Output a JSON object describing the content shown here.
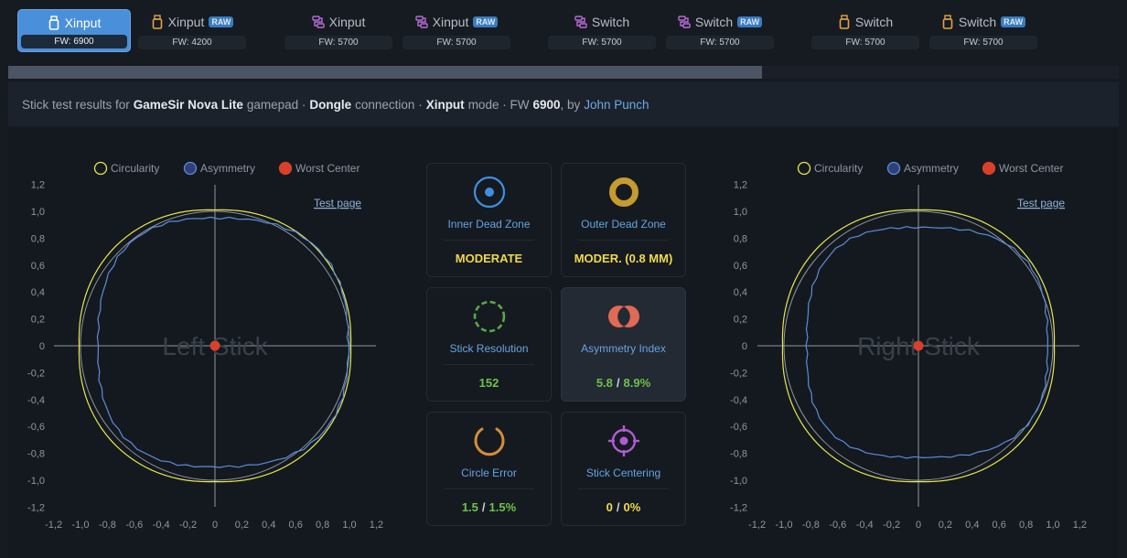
{
  "tabs": [
    {
      "name": "Xinput",
      "raw": false,
      "fw": "FW: 6900",
      "active": true,
      "icon": "dongle-icon",
      "color": "#ffffff"
    },
    {
      "name": "Xinput",
      "raw": true,
      "fw": "FW: 4200",
      "active": false,
      "icon": "dongle-icon",
      "color": "#e2a24a"
    },
    {
      "name": "Xinput",
      "raw": false,
      "fw": "FW: 5700",
      "active": false,
      "icon": "cable-icon",
      "color": "#b86bd6"
    },
    {
      "name": "Xinput",
      "raw": true,
      "fw": "FW: 5700",
      "active": false,
      "icon": "cable-icon",
      "color": "#b86bd6"
    },
    {
      "name": "Switch",
      "raw": false,
      "fw": "FW: 5700",
      "active": false,
      "icon": "cable-icon",
      "color": "#b86bd6"
    },
    {
      "name": "Switch",
      "raw": true,
      "fw": "FW: 5700",
      "active": false,
      "icon": "cable-icon",
      "color": "#b86bd6"
    },
    {
      "name": "Switch",
      "raw": false,
      "fw": "FW: 5700",
      "active": false,
      "icon": "dongle-icon",
      "color": "#e2a24a"
    },
    {
      "name": "Switch",
      "raw": true,
      "fw": "FW: 5700",
      "active": false,
      "icon": "dongle-icon",
      "color": "#e2a24a"
    }
  ],
  "raw_badge": "RAW",
  "summary": {
    "prefix": "Stick test results for",
    "device": "GameSir Nova Lite",
    "device_suffix": "gamepad ·",
    "connection": "Dongle",
    "connection_suffix": "connection ·",
    "mode": "Xinput",
    "mode_suffix": "mode · FW",
    "fw": "6900",
    "by": ", by",
    "author": "John Punch"
  },
  "legend": {
    "circularity": "Circularity",
    "asymmetry": "Asymmetry",
    "worst_center": "Worst Center",
    "circularity_color": "#e8e84a",
    "asymmetry_color": "#5b8ed8",
    "center_color": "#d9402b"
  },
  "left_plot": {
    "title": "Left Stick",
    "link": "Test page"
  },
  "right_plot": {
    "title": "Right Stick",
    "link": "Test page"
  },
  "y_ticks": [
    "1,2",
    "1,0",
    "0,8",
    "0,6",
    "0,4",
    "0,2",
    "0",
    "-0,2",
    "-0,4",
    "-0,6",
    "-0,8",
    "-1,0",
    "-1,2"
  ],
  "x_ticks": [
    "-1,2",
    "-1,0",
    "-0,8",
    "-0,6",
    "-0,4",
    "-0,2",
    "0",
    "0,2",
    "0,4",
    "0,6",
    "0,8",
    "1,0",
    "1,2"
  ],
  "cards": [
    {
      "id": "inner-dead-zone",
      "label": "Inner Dead Zone",
      "icon": "inner-dead-zone-icon",
      "v1": "MODERATE",
      "v1_color": "yellow"
    },
    {
      "id": "outer-dead-zone",
      "label": "Outer Dead Zone",
      "icon": "outer-dead-zone-icon",
      "v1": "MODER. (0.8 MM)",
      "v1_color": "yellow"
    },
    {
      "id": "stick-resolution",
      "label": "Stick Resolution",
      "icon": "stick-resolution-icon",
      "v1": "152",
      "v1_color": "green"
    },
    {
      "id": "asymmetry-index",
      "label": "Asymmetry Index",
      "icon": "asymmetry-index-icon",
      "v1": "5.8",
      "sep": "/",
      "v2": "8.9%",
      "v1_color": "green",
      "v2_color": "green"
    },
    {
      "id": "circle-error",
      "label": "Circle Error",
      "icon": "circle-error-icon",
      "v1": "1.5",
      "sep": "/",
      "v2": "1.5%",
      "v1_color": "green",
      "v2_color": "green"
    },
    {
      "id": "stick-centering",
      "label": "Stick Centering",
      "icon": "stick-centering-icon",
      "v1": "0",
      "sep": "/",
      "v2": "0%",
      "v1_color": "yellow",
      "v2_color": "yellow"
    }
  ]
}
